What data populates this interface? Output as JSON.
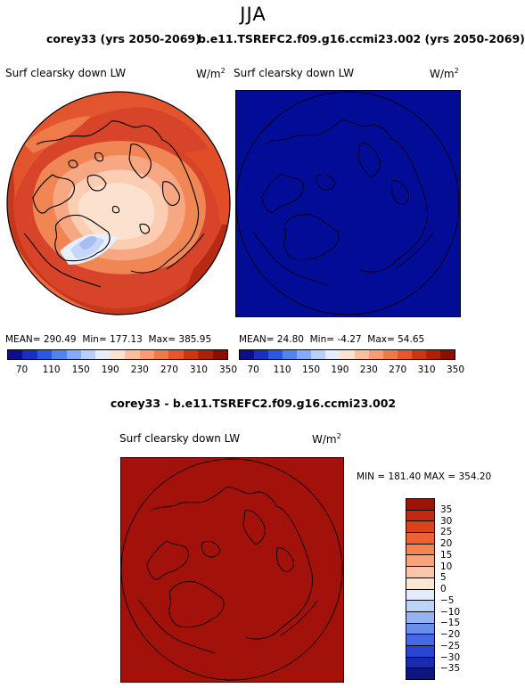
{
  "season": "JJA",
  "left_title": "corey33 (yrs 2050-2069)",
  "right_title": "b.e11.TSREFC2.f09.g16.ccmi23.002 (yrs 2050-2069)",
  "diff_title": "corey33 - b.e11.TSREFC2.f09.g16.ccmi23.002",
  "panels": [
    {
      "variable": "Surf clearsky down LW",
      "units": "W/m",
      "units_sup": "2",
      "stats": {
        "mean_label": "MEAN=",
        "mean": "290.49",
        "min_label": "Min=",
        "min": "177.13",
        "max_label": "Max=",
        "max": "385.95"
      }
    },
    {
      "variable": "Surf clearsky down LW",
      "units": "W/m",
      "units_sup": "2",
      "stats": {
        "mean_label": "MEAN=",
        "mean": "24.80",
        "min_label": "Min=",
        "min": "-4.27",
        "max_label": "Max=",
        "max": "54.65"
      }
    }
  ],
  "diff_panel": {
    "variable": "Surf clearsky down LW",
    "units": "W/m",
    "units_sup": "2",
    "minmax": "MIN = 181.40 MAX = 354.20"
  },
  "abs_colorbar": {
    "labels": [
      "70",
      "110",
      "150",
      "190",
      "230",
      "270",
      "310",
      "350"
    ],
    "colors": [
      "#0b0f8f",
      "#1a2ec0",
      "#2f56e0",
      "#5482f0",
      "#86aaf5",
      "#b8cff8",
      "#e6eefa",
      "#fde2cf",
      "#f9c0a2",
      "#f69c78",
      "#f0784f",
      "#e6552d",
      "#cc3617",
      "#ad1f0a",
      "#8a0e03"
    ]
  },
  "diff_colorbar": {
    "labels": [
      "35",
      "30",
      "25",
      "20",
      "15",
      "10",
      "5",
      "0",
      "−5",
      "−10",
      "−15",
      "−20",
      "−25",
      "−30",
      "−35"
    ],
    "colors": [
      "#9c1406",
      "#c22a10",
      "#de4219",
      "#ed6232",
      "#f48450",
      "#f7a47b",
      "#f9c6a7",
      "#fde6d2",
      "#e2ecfa",
      "#bcd2f8",
      "#94b3f3",
      "#6b8df0",
      "#4568e6",
      "#2a45cf",
      "#1a2aac",
      "#0e1582"
    ]
  },
  "colors": {
    "left_map_base": "#d8442a",
    "right_map_fill": "#020c96",
    "diff_map_fill": "#a2120a",
    "coast": "#000000"
  }
}
